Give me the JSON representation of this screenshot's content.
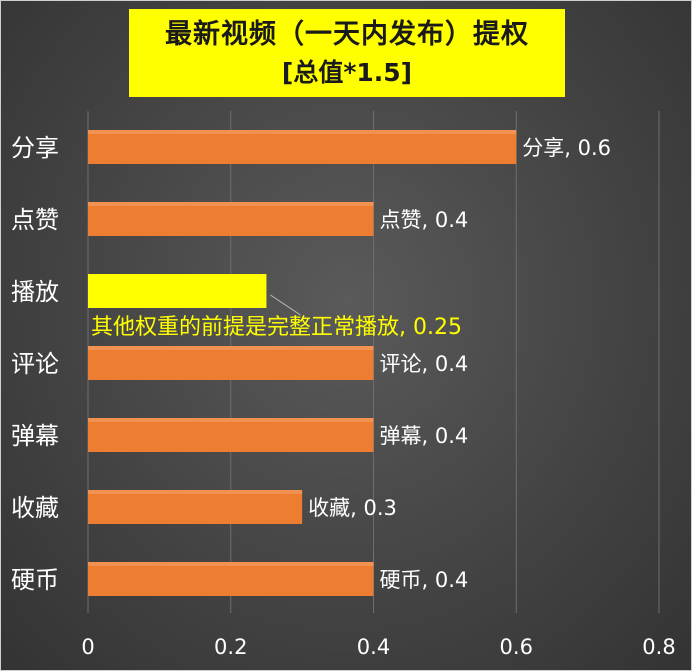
{
  "chart_data": {
    "type": "bar",
    "orientation": "horizontal",
    "title": "最新视频（一天内发布）提权",
    "subtitle": "[总值*1.5]",
    "categories": [
      "分享",
      "点赞",
      "播放",
      "评论",
      "弹幕",
      "收藏",
      "硬币"
    ],
    "values": [
      0.6,
      0.4,
      0.25,
      0.4,
      0.4,
      0.3,
      0.4
    ],
    "data_labels": [
      "分享, 0.6",
      "点赞, 0.4",
      "其他权重的前提是完整正常播放, 0.25",
      "评论, 0.4",
      "弹幕, 0.4",
      "收藏, 0.3",
      "硬币, 0.4"
    ],
    "xlim": [
      0,
      0.8
    ],
    "xticks": [
      "0",
      "0.2",
      "0.4",
      "0.6",
      "0.8"
    ],
    "grid": true,
    "highlight_index": 2,
    "colors": {
      "bar": "#ed7d31",
      "bar_highlight": "#ffff00",
      "highlight_label": "#ffff00",
      "title_background": "#ffff00",
      "label_text": "#ffffff",
      "grid": "#6e6e6e",
      "background": "#444444"
    }
  }
}
